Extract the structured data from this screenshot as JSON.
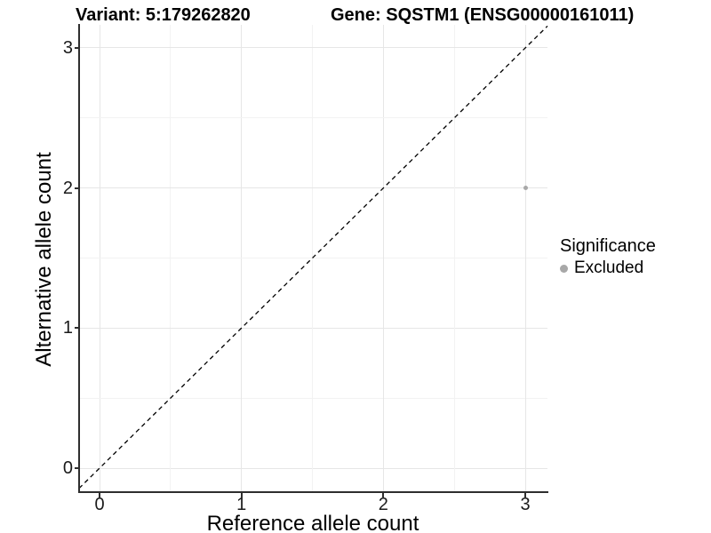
{
  "header": {
    "variant_title": "Variant: 5:179262820",
    "gene_title": "Gene: SQSTM1 (ENSG00000161011)"
  },
  "legend": {
    "title": "Significance",
    "items": [
      {
        "label": "Excluded",
        "color": "#a8a8a8"
      }
    ]
  },
  "chart_data": {
    "type": "scatter",
    "title": "Variant: 5:179262820   Gene: SQSTM1 (ENSG00000161011)",
    "xlabel": "Reference allele count",
    "ylabel": "Alternative allele count",
    "xlim": [
      -0.15,
      3.15
    ],
    "ylim": [
      -0.15,
      3.15
    ],
    "x_ticks": [
      0,
      1,
      2,
      3
    ],
    "y_ticks": [
      0,
      1,
      2,
      3
    ],
    "minor_grid_step": 0.5,
    "grid": true,
    "legend_position": "right",
    "points": [
      {
        "x": 3,
        "y": 2,
        "series": "Excluded",
        "color": "#a8a8a8",
        "radius": 2.5
      }
    ],
    "reference_line": {
      "equation": "y = x",
      "style": "dashed",
      "color": "#000000"
    }
  },
  "colors": {
    "grid_major": "#e6e6e6",
    "grid_minor": "#f2f2f2",
    "axis_line": "#2e2e2e",
    "tick_text": "#1a1a1a",
    "background": "#ffffff"
  }
}
